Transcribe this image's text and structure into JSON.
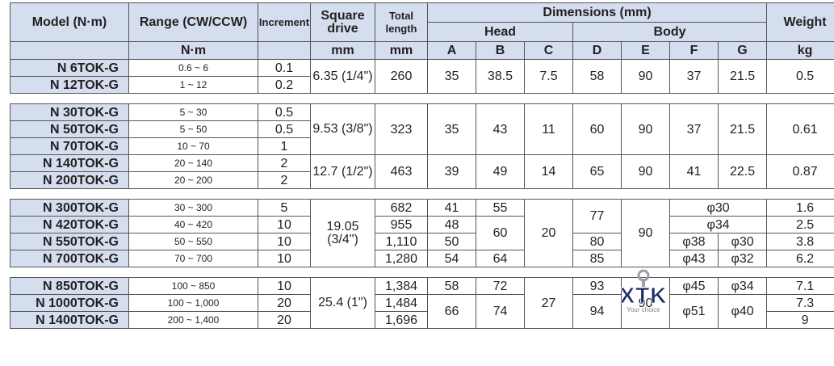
{
  "header": {
    "model": "Model\n(N·m)",
    "range": "Range\n(CW/CCW)",
    "increment": "Increment",
    "square_drive": "Square\ndrive",
    "total_length": "Total\nlength",
    "dimensions": "Dimensions (mm)",
    "weight": "Weight",
    "head": "Head",
    "body": "Body",
    "letters": [
      "A",
      "B",
      "C",
      "D",
      "E",
      "F",
      "G"
    ],
    "unit_range": "N·m",
    "unit_drive": "mm",
    "unit_length": "mm",
    "unit_weight": "kg"
  },
  "groups": [
    {
      "drive": "6.35\n(1/4\")",
      "length": "260",
      "A": "35",
      "B": "38.5",
      "C": "7.5",
      "D": "58",
      "E": "90",
      "F": "37",
      "G": "21.5",
      "weight": "0.5",
      "rows": [
        {
          "model": "N 6TOK-G",
          "range": "0.6 ~ 6",
          "increment": "0.1"
        },
        {
          "model": "N 12TOK-G",
          "range": "1 ~ 12",
          "increment": "0.2"
        }
      ]
    },
    {
      "rows": [
        {
          "model": "N 30TOK-G",
          "range": "5 ~ 30",
          "increment": "0.5"
        },
        {
          "model": "N 50TOK-G",
          "range": "5 ~ 50",
          "increment": "0.5"
        },
        {
          "model": "N 70TOK-G",
          "range": "10 ~ 70",
          "increment": "1"
        },
        {
          "model": "N 140TOK-G",
          "range": "20 ~ 140",
          "increment": "2"
        },
        {
          "model": "N 200TOK-G",
          "range": "20 ~ 200",
          "increment": "2"
        }
      ],
      "sub1": {
        "drive": "9.53\n(3/8\")",
        "length": "323",
        "A": "35",
        "B": "43",
        "C": "11",
        "D": "60",
        "E": "90",
        "F": "37",
        "G": "21.5",
        "weight": "0.61"
      },
      "sub2": {
        "drive": "12.7\n(1/2\")",
        "length": "463",
        "A": "39",
        "B": "49",
        "C": "14",
        "D": "65",
        "E": "90",
        "F": "41",
        "G": "22.5",
        "weight": "0.87"
      }
    },
    {
      "drive": "19.05\n(3/4\")",
      "C": "20",
      "E": "90",
      "D_top": "77",
      "B_mid": "60",
      "rows": [
        {
          "model": "N 300TOK-G",
          "range": "30 ~ 300",
          "increment": "5",
          "length": "682",
          "A": "41",
          "B": "55",
          "FG": "φ30",
          "weight": "1.6"
        },
        {
          "model": "N 420TOK-G",
          "range": "40 ~ 420",
          "increment": "10",
          "length": "955",
          "A": "48",
          "FG": "φ34",
          "weight": "2.5"
        },
        {
          "model": "N 550TOK-G",
          "range": "50 ~ 550",
          "increment": "10",
          "length": "1,110",
          "A": "50",
          "D": "80",
          "F": "φ38",
          "G": "φ30",
          "weight": "3.8"
        },
        {
          "model": "N 700TOK-G",
          "range": "70 ~ 700",
          "increment": "10",
          "length": "1,280",
          "A": "54",
          "B": "64",
          "D": "85",
          "F": "φ43",
          "G": "φ32",
          "weight": "6.2"
        }
      ]
    },
    {
      "drive": "25.4\n(1\")",
      "C": "27",
      "E": "90",
      "A_bottom": "66",
      "B_bottom": "74",
      "D_bottom": "94",
      "F_bottom": "φ51",
      "G_bottom": "φ40",
      "rows": [
        {
          "model": "N 850TOK-G",
          "range": "100 ~ 850",
          "increment": "10",
          "length": "1,384",
          "A": "58",
          "B": "72",
          "D": "93",
          "F": "φ45",
          "G": "φ34",
          "weight": "7.1"
        },
        {
          "model": "N 1000TOK-G",
          "range": "100 ~ 1,000",
          "increment": "20",
          "length": "1,484",
          "weight": "7.3"
        },
        {
          "model": "N 1400TOK-G",
          "range": "200 ~ 1,400",
          "increment": "20",
          "length": "1,696",
          "weight": "9"
        }
      ]
    }
  ],
  "watermark": {
    "brand": "XTK",
    "tagline": "Your choice"
  },
  "colors": {
    "header_bg": "#d4deef",
    "border": "#555555",
    "text": "#231f20"
  }
}
